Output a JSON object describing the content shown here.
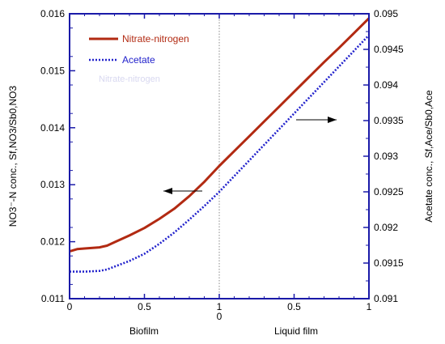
{
  "chart_data": {
    "type": "line",
    "x_tick_labels": [
      "0",
      "0.5",
      "1",
      "0",
      "0.5",
      "1"
    ],
    "xlabel_left": "Biofilm",
    "xlabel_right": "Liquid film",
    "ylabel_left": "NO3⁻-N conc., Sf,NO3/Sb0,NO3",
    "ylabel_right": "Acetate conc., Sf,Ace/Sb0,Ace",
    "ylim_left": [
      0.011,
      0.016
    ],
    "ylim_right": [
      0.091,
      0.095
    ],
    "y_left_ticks": [
      "0.011",
      "0.012",
      "0.013",
      "0.014",
      "0.015",
      "0.016"
    ],
    "y_right_ticks": [
      "0.091",
      "0.0915",
      "0.092",
      "0.0925",
      "0.093",
      "0.0935",
      "0.094",
      "0.0945",
      "0.095"
    ],
    "divider_at_x": 1,
    "grid": false,
    "legend_position": "top-left",
    "ghost_legend_text": "Nitrate-nitrogen",
    "series": [
      {
        "name": "Nitrate-nitrogen",
        "axis": "left",
        "color": "#b22a12",
        "style": "solid",
        "x": [
          0,
          0.05,
          0.1,
          0.2,
          0.25,
          0.3,
          0.4,
          0.5,
          0.6,
          0.7,
          0.8,
          0.9,
          1.0,
          1.1,
          1.2,
          1.3,
          1.4,
          1.5,
          1.6,
          1.7,
          1.8,
          1.9,
          2.0
        ],
        "y": [
          0.01183,
          0.01187,
          0.01188,
          0.0119,
          0.01193,
          0.01199,
          0.01211,
          0.01224,
          0.0124,
          0.01258,
          0.0128,
          0.01305,
          0.01333,
          0.01359,
          0.01385,
          0.01411,
          0.01437,
          0.01463,
          0.01489,
          0.01515,
          0.0154,
          0.01566,
          0.01592
        ]
      },
      {
        "name": "Acetate",
        "axis": "right",
        "color": "#2222cc",
        "style": "dotted",
        "x": [
          0,
          0.1,
          0.2,
          0.25,
          0.3,
          0.4,
          0.5,
          0.6,
          0.7,
          0.8,
          0.9,
          1.0,
          1.1,
          1.2,
          1.3,
          1.4,
          1.5,
          1.6,
          1.7,
          1.8,
          1.9,
          2.0
        ],
        "y": [
          0.09138,
          0.09138,
          0.09139,
          0.09141,
          0.09145,
          0.09153,
          0.09163,
          0.09177,
          0.09193,
          0.09211,
          0.0923,
          0.0925,
          0.09272,
          0.09294,
          0.09316,
          0.09338,
          0.0936,
          0.09382,
          0.09404,
          0.09426,
          0.09448,
          0.0947
        ]
      }
    ],
    "annotations": [
      {
        "name": "left-axis-arrow",
        "direction": "left"
      },
      {
        "name": "right-axis-arrow",
        "direction": "right"
      }
    ],
    "colors": {
      "frame": "#1a1aa8",
      "divider": "#888888",
      "arrow": "#000000",
      "ghost_text": "#d8d8f0"
    }
  }
}
